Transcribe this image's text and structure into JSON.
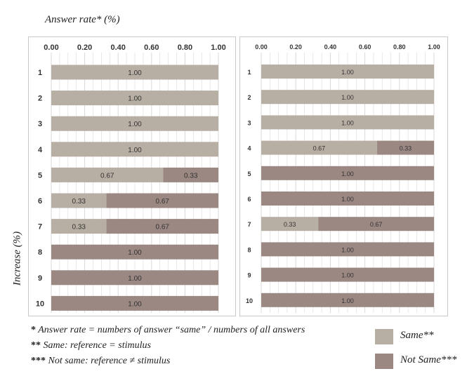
{
  "x_title": "Answer rate* (%)",
  "y_title": "Increase (%)",
  "colors": {
    "same": "#b8afa4",
    "not_same": "#9b8882",
    "grid": "#d9d9d9"
  },
  "chart_data": [
    {
      "type": "bar",
      "orientation": "horizontal",
      "stacked": true,
      "xlim": [
        0,
        1
      ],
      "xticks": [
        "0.00",
        "0.20",
        "0.40",
        "0.60",
        "0.80",
        "1.00"
      ],
      "categories": [
        "1",
        "2",
        "3",
        "4",
        "5",
        "6",
        "7",
        "8",
        "9",
        "10"
      ],
      "series": [
        {
          "name": "Same**",
          "values": [
            1.0,
            1.0,
            1.0,
            1.0,
            0.67,
            0.33,
            0.33,
            0,
            0,
            0
          ]
        },
        {
          "name": "Not Same***",
          "values": [
            0,
            0,
            0,
            0,
            0.33,
            0.67,
            0.67,
            1.0,
            1.0,
            1.0
          ]
        }
      ],
      "grid": true
    },
    {
      "type": "bar",
      "orientation": "horizontal",
      "stacked": true,
      "xlim": [
        0,
        1
      ],
      "xticks": [
        "0.00",
        "0.20",
        "0.40",
        "0.60",
        "0.80",
        "1.00"
      ],
      "categories": [
        "1",
        "2",
        "3",
        "4",
        "5",
        "6",
        "7",
        "8",
        "9",
        "10"
      ],
      "series": [
        {
          "name": "Same**",
          "values": [
            1.0,
            1.0,
            1.0,
            0.67,
            0,
            0,
            0.33,
            0,
            0,
            0
          ]
        },
        {
          "name": "Not Same***",
          "values": [
            0,
            0,
            0,
            0.33,
            1.0,
            1.0,
            0.67,
            1.0,
            1.0,
            1.0
          ]
        }
      ],
      "grid": true
    }
  ],
  "notes": [
    {
      "star": "*",
      "text": " Answer rate = numbers of answer “same” / numbers of all answers"
    },
    {
      "star": "**",
      "text": " Same: reference = stimulus"
    },
    {
      "star": "***",
      "text": " Not same: reference ≠ stimulus"
    }
  ],
  "legend": [
    {
      "label": "Same**",
      "color": "#b8afa4"
    },
    {
      "label": "Not Same***",
      "color": "#9b8882"
    }
  ]
}
